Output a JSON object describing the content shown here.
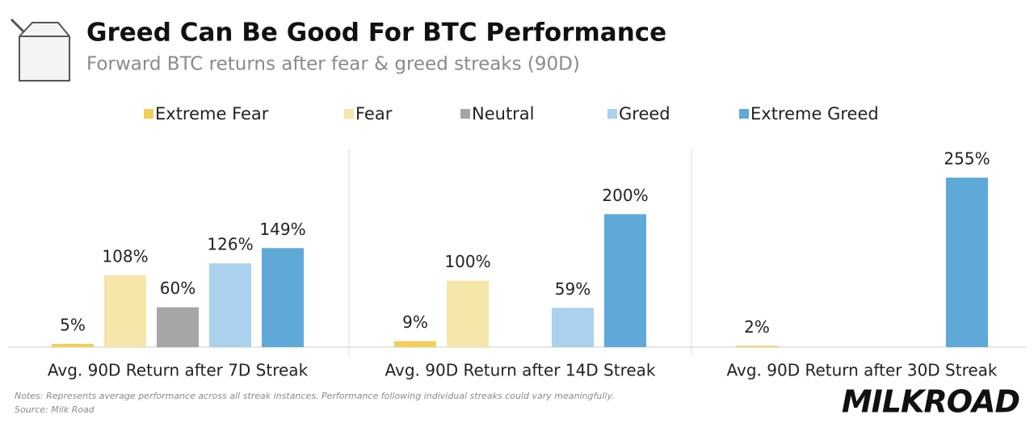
{
  "chart_data": {
    "type": "bar",
    "title": "Greed Can Be Good For BTC Performance",
    "subtitle": "Forward BTC returns after fear & greed streaks (90D)",
    "categories": [
      "Avg. 90D Return after 7D Streak",
      "Avg. 90D Return after 14D Streak",
      "Avg. 90D Return after 30D Streak"
    ],
    "series": [
      {
        "name": "Extreme Fear",
        "color": "#f0cf5a",
        "values": [
          5,
          9,
          2
        ],
        "value_labels": [
          "5%",
          "9%",
          "2%"
        ]
      },
      {
        "name": "Fear",
        "color": "#f5e6a9",
        "values": [
          108,
          100,
          null
        ],
        "value_labels": [
          "108%",
          "100%",
          null
        ]
      },
      {
        "name": "Neutral",
        "color": "#a6a6a6",
        "values": [
          60,
          null,
          null
        ],
        "value_labels": [
          "60%",
          null,
          null
        ]
      },
      {
        "name": "Greed",
        "color": "#aad1ed",
        "values": [
          126,
          59,
          null
        ],
        "value_labels": [
          "126%",
          "59%",
          null
        ]
      },
      {
        "name": "Extreme Greed",
        "color": "#5fa9d9",
        "values": [
          149,
          200,
          255
        ],
        "value_labels": [
          "149%",
          "200%",
          "255%"
        ]
      }
    ],
    "notes": "Notes: Represents average performance across all streak instances. Performance following individual streaks could vary meaningfully.",
    "source": "Source: Milk Road",
    "logo": "MILKROAD"
  }
}
